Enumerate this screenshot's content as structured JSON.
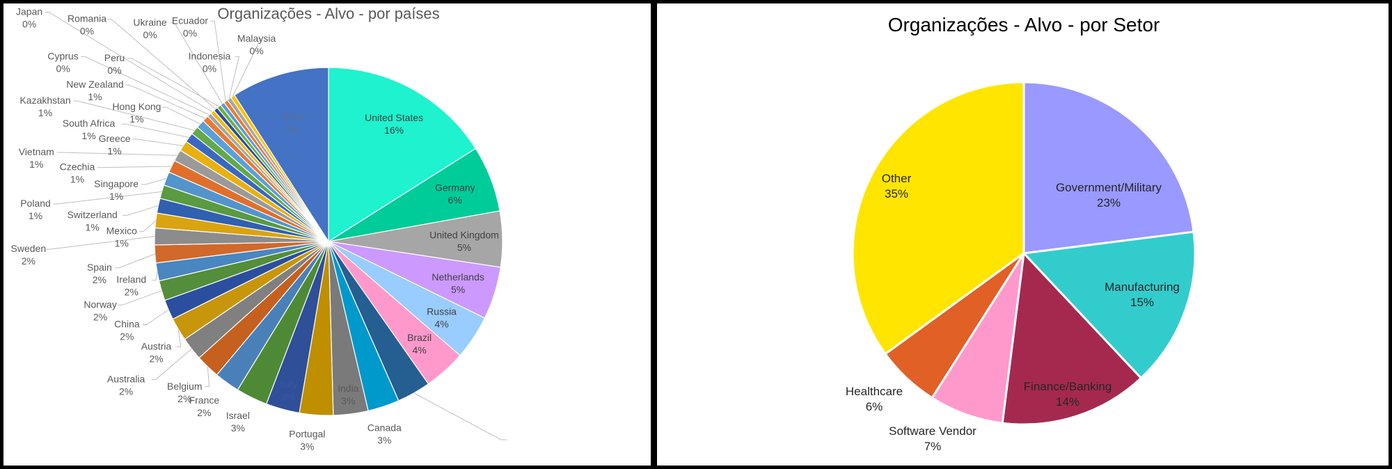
{
  "chart_data": [
    {
      "type": "pie",
      "title": "Organizações - Alvo - por países",
      "start": "top",
      "direction": "clockwise",
      "slices": [
        {
          "name": "United States",
          "label": "16%",
          "value": 16.4,
          "color": "#1ef2cf"
        },
        {
          "name": "Germany",
          "label": "6%",
          "value": 6.3,
          "color": "#00cc99"
        },
        {
          "name": "United Kingdom",
          "label": "5%",
          "value": 5.3,
          "color": "#a6a6a6"
        },
        {
          "name": "Netherlands",
          "label": "5%",
          "value": 5.0,
          "color": "#cc99ff"
        },
        {
          "name": "Russia",
          "label": "4%",
          "value": 4.2,
          "color": "#99ccff"
        },
        {
          "name": "Brazil",
          "label": "4%",
          "value": 4.0,
          "color": "#ff99cc"
        },
        {
          "name": "",
          "label": "",
          "value": 3.2,
          "color": "#255e91"
        },
        {
          "name": "Canada",
          "label": "3%",
          "value": 3.0,
          "color": "#0099cc"
        },
        {
          "name": "India",
          "label": "3%",
          "value": 3.3,
          "color": "#7a7a7a"
        },
        {
          "name": "Portugal",
          "label": "3%",
          "value": 3.2,
          "color": "#bf8f00"
        },
        {
          "name": "Italy",
          "label": "3%",
          "value": 3.2,
          "color": "#2f4f98"
        },
        {
          "name": "Israel",
          "label": "3%",
          "value": 3.0,
          "color": "#4e8a35"
        },
        {
          "name": "France",
          "label": "2%",
          "value": 2.4,
          "color": "#4a80b8"
        },
        {
          "name": "Belgium",
          "label": "2%",
          "value": 2.3,
          "color": "#c5601e"
        },
        {
          "name": "Australia",
          "label": "2%",
          "value": 2.2,
          "color": "#808080"
        },
        {
          "name": "Austria",
          "label": "2%",
          "value": 2.2,
          "color": "#c8960a"
        },
        {
          "name": "China",
          "label": "2%",
          "value": 1.9,
          "color": "#2b4f9e"
        },
        {
          "name": "Norway",
          "label": "2%",
          "value": 1.9,
          "color": "#548e3a"
        },
        {
          "name": "Ireland",
          "label": "2%",
          "value": 1.7,
          "color": "#4a86c0"
        },
        {
          "name": "Spain",
          "label": "2%",
          "value": 1.7,
          "color": "#d0692a"
        },
        {
          "name": "Sweden",
          "label": "2%",
          "value": 1.6,
          "color": "#8c8c8c"
        },
        {
          "name": "Mexico",
          "label": "1%",
          "value": 1.4,
          "color": "#d9a410"
        },
        {
          "name": "Switzerland",
          "label": "1%",
          "value": 1.4,
          "color": "#3060b0"
        },
        {
          "name": "Poland",
          "label": "1%",
          "value": 1.3,
          "color": "#5a9a40"
        },
        {
          "name": "Singapore",
          "label": "1%",
          "value": 1.3,
          "color": "#5494cc"
        },
        {
          "name": "Czechia",
          "label": "1%",
          "value": 1.2,
          "color": "#e06f2c"
        },
        {
          "name": "Vietnam",
          "label": "1%",
          "value": 1.1,
          "color": "#9a9a9a"
        },
        {
          "name": "Greece",
          "label": "1%",
          "value": 1.0,
          "color": "#e8b010"
        },
        {
          "name": "South Africa",
          "label": "1%",
          "value": 0.9,
          "color": "#3a68c0"
        },
        {
          "name": "Kazakhstan",
          "label": "1%",
          "value": 0.8,
          "color": "#64a848"
        },
        {
          "name": "Hong Kong",
          "label": "1%",
          "value": 0.8,
          "color": "#5aa0d8"
        },
        {
          "name": "New Zealand",
          "label": "1%",
          "value": 0.6,
          "color": "#ea7a35"
        },
        {
          "name": "Cyprus",
          "label": "0%",
          "value": 0.4,
          "color": "#a5a5a5"
        },
        {
          "name": "Japan",
          "label": "0%",
          "value": 0.4,
          "color": "#f0b814"
        },
        {
          "name": "Romania",
          "label": "0%",
          "value": 0.4,
          "color": "#2a4f9a"
        },
        {
          "name": "Peru",
          "label": "0%",
          "value": 0.4,
          "color": "#70ad47"
        },
        {
          "name": "Ukraine",
          "label": "0%",
          "value": 0.4,
          "color": "#5b9bd5"
        },
        {
          "name": "Ecuador",
          "label": "0%",
          "value": 0.4,
          "color": "#ed7d31"
        },
        {
          "name": "Indonesia",
          "label": "0%",
          "value": 0.4,
          "color": "#a5a5a5"
        },
        {
          "name": "Malaysia",
          "label": "0%",
          "value": 0.4,
          "color": "#ffc000"
        },
        {
          "name": "Other",
          "label": "9%",
          "value": 9.3,
          "color": "#4472c4"
        }
      ]
    },
    {
      "type": "pie",
      "title": "Organizações - Alvo - por Setor",
      "start": "top",
      "direction": "clockwise",
      "slices": [
        {
          "name": "Government/Military",
          "label": "23%",
          "value": 23,
          "color": "#9999ff"
        },
        {
          "name": "Manufacturing",
          "label": "15%",
          "value": 15,
          "color": "#33cccc"
        },
        {
          "name": "Finance/Banking",
          "label": "14%",
          "value": 14,
          "color": "#a5294f"
        },
        {
          "name": "Software Vendor",
          "label": "7%",
          "value": 7,
          "color": "#ff99cc"
        },
        {
          "name": "Healthcare",
          "label": "6%",
          "value": 6,
          "color": "#e06026"
        },
        {
          "name": "Other",
          "label": "35%",
          "value": 35,
          "color": "#ffe500"
        }
      ]
    }
  ]
}
